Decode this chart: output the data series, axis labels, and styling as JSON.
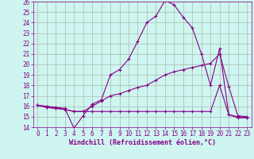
{
  "xlabel": "Windchill (Refroidissement éolien,°C)",
  "background_color": "#cef5f0",
  "line_color": "#880088",
  "grid_color": "#aabbaa",
  "xlim": [
    -0.5,
    23.5
  ],
  "ylim": [
    14,
    26
  ],
  "yticks": [
    14,
    15,
    16,
    17,
    18,
    19,
    20,
    21,
    22,
    23,
    24,
    25,
    26
  ],
  "xticks": [
    0,
    1,
    2,
    3,
    4,
    5,
    6,
    7,
    8,
    9,
    10,
    11,
    12,
    13,
    14,
    15,
    16,
    17,
    18,
    19,
    20,
    21,
    22,
    23
  ],
  "series1_x": [
    0,
    1,
    2,
    3,
    4,
    5,
    6,
    7,
    8,
    9,
    10,
    11,
    12,
    13,
    14,
    15,
    16,
    17,
    18,
    19,
    20,
    21,
    22,
    23
  ],
  "series1_y": [
    16.1,
    16.0,
    15.9,
    15.8,
    13.9,
    15.1,
    16.2,
    16.6,
    19.0,
    19.5,
    20.5,
    22.2,
    24.0,
    24.6,
    26.1,
    25.7,
    24.5,
    23.5,
    21.0,
    18.0,
    21.5,
    15.2,
    14.9,
    14.9
  ],
  "series2_x": [
    0,
    1,
    2,
    3,
    4,
    5,
    6,
    7,
    8,
    9,
    10,
    11,
    12,
    13,
    14,
    15,
    16,
    17,
    18,
    19,
    20,
    21,
    22,
    23
  ],
  "series2_y": [
    16.1,
    15.9,
    15.8,
    15.7,
    15.5,
    15.5,
    16.0,
    16.5,
    17.0,
    17.2,
    17.5,
    17.8,
    18.0,
    18.5,
    19.0,
    19.3,
    19.5,
    19.7,
    19.9,
    20.1,
    21.0,
    17.9,
    15.1,
    15.0
  ],
  "series3_x": [
    0,
    1,
    2,
    3,
    4,
    5,
    6,
    7,
    8,
    9,
    10,
    11,
    12,
    13,
    14,
    15,
    16,
    17,
    18,
    19,
    20,
    21,
    22,
    23
  ],
  "series3_y": [
    16.1,
    15.9,
    15.8,
    15.7,
    15.5,
    15.5,
    15.5,
    15.5,
    15.5,
    15.5,
    15.5,
    15.5,
    15.5,
    15.5,
    15.5,
    15.5,
    15.5,
    15.5,
    15.5,
    15.5,
    18.0,
    15.2,
    15.0,
    14.9
  ],
  "tick_fontsize": 5.5,
  "xlabel_fontsize": 6.0
}
